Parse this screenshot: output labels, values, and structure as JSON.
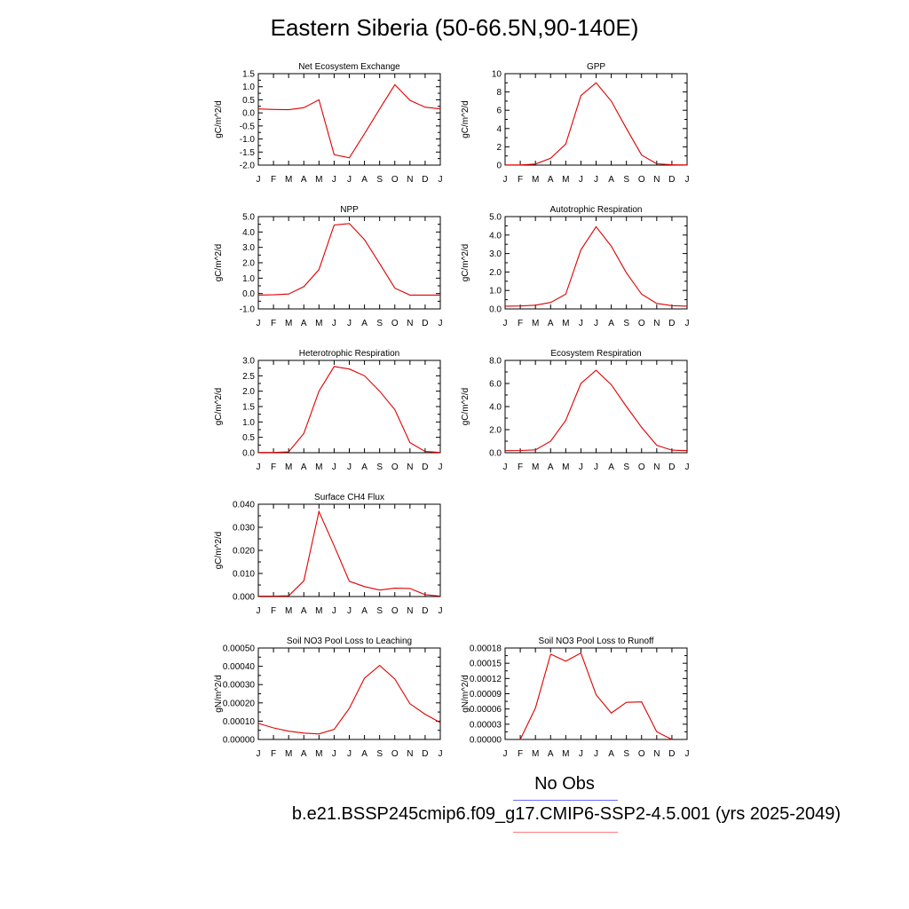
{
  "title": "Eastern Siberia (50-66.5N,90-140E)",
  "legend": {
    "obs_label": "No Obs",
    "case_label": "b.e21.BSSP245cmip6.f09_g17.CMIP6-SSP2-4.5.001 (yrs 2025-2049)",
    "obs_color": "#6b6bff",
    "case_color": "#ff7a7a"
  },
  "colors": {
    "series": "#e00000"
  },
  "chart_data": [
    {
      "type": "line",
      "title": "Net Ecosystem Exchange",
      "ylabel": "gC/m^2/d",
      "categories": [
        "J",
        "F",
        "M",
        "A",
        "M",
        "J",
        "J",
        "A",
        "S",
        "O",
        "N",
        "D",
        "J"
      ],
      "ylim": [
        -2.0,
        1.5
      ],
      "yticks": [
        "1.5",
        "1.0",
        "0.5",
        "0.0",
        "-0.5",
        "-1.0",
        "-1.5",
        "-2.0"
      ],
      "yticks_values": [
        1.5,
        1.0,
        0.5,
        0.0,
        -0.5,
        -1.0,
        -1.5,
        -2.0
      ],
      "values": [
        0.15,
        0.13,
        0.12,
        0.2,
        0.5,
        -1.6,
        -1.72,
        -0.8,
        0.15,
        1.08,
        0.48,
        0.22,
        0.15
      ]
    },
    {
      "type": "line",
      "title": "GPP",
      "ylabel": "gC/m^2/d",
      "categories": [
        "J",
        "F",
        "M",
        "A",
        "M",
        "J",
        "J",
        "A",
        "S",
        "O",
        "N",
        "D",
        "J"
      ],
      "ylim": [
        0,
        10
      ],
      "yticks": [
        "10",
        "8",
        "6",
        "4",
        "2",
        "0"
      ],
      "yticks_values": [
        10,
        8,
        6,
        4,
        2,
        0
      ],
      "values": [
        0.02,
        0.02,
        0.12,
        0.75,
        2.3,
        7.6,
        9.0,
        7.0,
        4.0,
        1.1,
        0.15,
        0.04,
        0.02
      ]
    },
    {
      "type": "line",
      "title": "NPP",
      "ylabel": "gC/m^2/d",
      "categories": [
        "J",
        "F",
        "M",
        "A",
        "M",
        "J",
        "J",
        "A",
        "S",
        "O",
        "N",
        "D",
        "J"
      ],
      "ylim": [
        -1.0,
        5.0
      ],
      "yticks": [
        "5.0",
        "4.0",
        "3.0",
        "2.0",
        "1.0",
        "0.0",
        "-1.0"
      ],
      "yticks_values": [
        5.0,
        4.0,
        3.0,
        2.0,
        1.0,
        0.0,
        -1.0
      ],
      "values": [
        -0.1,
        -0.08,
        -0.03,
        0.45,
        1.55,
        4.45,
        4.55,
        3.5,
        1.95,
        0.35,
        -0.1,
        -0.1,
        -0.1
      ]
    },
    {
      "type": "line",
      "title": "Autotrophic Respiration",
      "ylabel": "gC/m^2/d",
      "categories": [
        "J",
        "F",
        "M",
        "A",
        "M",
        "J",
        "J",
        "A",
        "S",
        "O",
        "N",
        "D",
        "J"
      ],
      "ylim": [
        0,
        5.0
      ],
      "yticks": [
        "5.0",
        "4.0",
        "3.0",
        "2.0",
        "1.0",
        "0.0"
      ],
      "yticks_values": [
        5.0,
        4.0,
        3.0,
        2.0,
        1.0,
        0.0
      ],
      "values": [
        0.15,
        0.16,
        0.2,
        0.35,
        0.8,
        3.2,
        4.45,
        3.4,
        1.95,
        0.8,
        0.3,
        0.18,
        0.15
      ]
    },
    {
      "type": "line",
      "title": "Heterotrophic Respiration",
      "ylabel": "gC/m^2/d",
      "categories": [
        "J",
        "F",
        "M",
        "A",
        "M",
        "J",
        "J",
        "A",
        "S",
        "O",
        "N",
        "D",
        "J"
      ],
      "ylim": [
        0,
        3.0
      ],
      "yticks": [
        "3.0",
        "2.5",
        "2.0",
        "1.5",
        "1.0",
        "0.5",
        "0.0"
      ],
      "yticks_values": [
        3.0,
        2.5,
        2.0,
        1.5,
        1.0,
        0.5,
        0.0
      ],
      "values": [
        0.01,
        0.01,
        0.03,
        0.63,
        2.0,
        2.8,
        2.72,
        2.5,
        2.0,
        1.4,
        0.33,
        0.04,
        0.01
      ]
    },
    {
      "type": "line",
      "title": "Ecosystem Respiration",
      "ylabel": "gC/m^2/d",
      "categories": [
        "J",
        "F",
        "M",
        "A",
        "M",
        "J",
        "J",
        "A",
        "S",
        "O",
        "N",
        "D",
        "J"
      ],
      "ylim": [
        0,
        8.0
      ],
      "yticks": [
        "8.0",
        "6.0",
        "4.0",
        "2.0",
        "0.0"
      ],
      "yticks_values": [
        8.0,
        6.0,
        4.0,
        2.0,
        0.0
      ],
      "values": [
        0.18,
        0.19,
        0.25,
        1.0,
        2.8,
        6.0,
        7.15,
        5.9,
        4.0,
        2.2,
        0.65,
        0.22,
        0.18
      ]
    },
    {
      "type": "line",
      "title": "Surface CH4 Flux",
      "ylabel": "gC/m^2/d",
      "categories": [
        "J",
        "F",
        "M",
        "A",
        "M",
        "J",
        "J",
        "A",
        "S",
        "O",
        "N",
        "D",
        "J"
      ],
      "ylim": [
        0,
        0.04
      ],
      "yticks": [
        "0.040",
        "0.030",
        "0.020",
        "0.010",
        "0.000"
      ],
      "yticks_values": [
        0.04,
        0.03,
        0.02,
        0.01,
        0.0
      ],
      "values": [
        0.0002,
        0.0002,
        0.0003,
        0.0068,
        0.0368,
        0.022,
        0.0066,
        0.0043,
        0.0028,
        0.0036,
        0.0035,
        0.0008,
        0.0002
      ]
    },
    {
      "type": "line",
      "title": "Soil NO3 Pool Loss to Leaching",
      "ylabel": "gN/m^2/d",
      "categories": [
        "J",
        "F",
        "M",
        "A",
        "M",
        "J",
        "J",
        "A",
        "S",
        "O",
        "N",
        "D",
        "J"
      ],
      "ylim": [
        0,
        0.0005
      ],
      "yticks": [
        "0.00050",
        "0.00040",
        "0.00030",
        "0.00020",
        "0.00010",
        "0.00000"
      ],
      "yticks_values": [
        0.0005,
        0.0004,
        0.0003,
        0.0002,
        0.0001,
        0.0
      ],
      "values": [
        8.8e-05,
        6.3e-05,
        4.5e-05,
        3.5e-05,
        3e-05,
        5.5e-05,
        0.00017,
        0.000335,
        0.000405,
        0.00033,
        0.000195,
        0.000138,
        9.2e-05
      ]
    },
    {
      "type": "line",
      "title": "Soil NO3 Pool Loss to Runoff",
      "ylabel": "gN/m^2/d",
      "categories": [
        "J",
        "F",
        "M",
        "A",
        "M",
        "J",
        "J",
        "A",
        "S",
        "O",
        "N",
        "D",
        "J"
      ],
      "ylim": [
        0,
        0.00018
      ],
      "yticks": [
        "0.00018",
        "0.00015",
        "0.00012",
        "0.00009",
        "0.00006",
        "0.00003",
        "0.00000"
      ],
      "yticks_values": [
        0.00018,
        0.00015,
        0.00012,
        9e-05,
        6e-05,
        3e-05,
        0.0
      ],
      "values": [
        null,
        0.0,
        6.2e-05,
        0.000168,
        0.000154,
        0.00017,
        8.8e-05,
        5.2e-05,
        7.3e-05,
        7.4e-05,
        1.5e-05,
        0.0,
        null
      ]
    }
  ]
}
